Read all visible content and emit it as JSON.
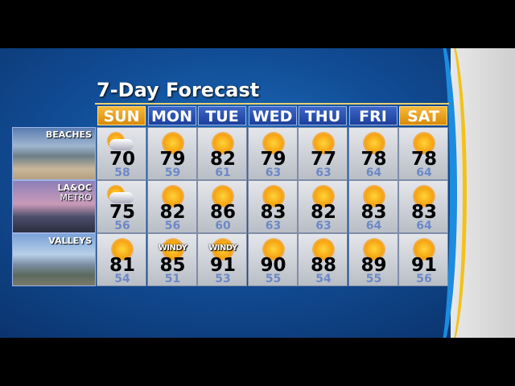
{
  "title": "7-Day Forecast",
  "days": [
    "SUN",
    "MON",
    "TUE",
    "WED",
    "THU",
    "FRI",
    "SAT"
  ],
  "weekend_color": "#f0a21d",
  "weekday_color": "#2b52b4",
  "regions": [
    {
      "name": "BEACHES",
      "sub": "",
      "forecast": [
        {
          "icon": "partly-cloudy",
          "hi": "70",
          "lo": "58"
        },
        {
          "icon": "sunny",
          "hi": "79",
          "lo": "59"
        },
        {
          "icon": "sunny",
          "hi": "82",
          "lo": "61"
        },
        {
          "icon": "sunny",
          "hi": "79",
          "lo": "63"
        },
        {
          "icon": "sunny",
          "hi": "77",
          "lo": "63"
        },
        {
          "icon": "sunny",
          "hi": "78",
          "lo": "64"
        },
        {
          "icon": "sunny",
          "hi": "78",
          "lo": "64"
        }
      ]
    },
    {
      "name": "LA&OC",
      "sub": "METRO",
      "forecast": [
        {
          "icon": "partly-cloudy",
          "hi": "75",
          "lo": "56"
        },
        {
          "icon": "sunny",
          "hi": "82",
          "lo": "56"
        },
        {
          "icon": "sunny",
          "hi": "86",
          "lo": "60"
        },
        {
          "icon": "sunny",
          "hi": "83",
          "lo": "63"
        },
        {
          "icon": "sunny",
          "hi": "82",
          "lo": "63"
        },
        {
          "icon": "sunny",
          "hi": "83",
          "lo": "64"
        },
        {
          "icon": "sunny",
          "hi": "83",
          "lo": "64"
        }
      ]
    },
    {
      "name": "VALLEYS",
      "sub": "",
      "forecast": [
        {
          "icon": "sunny",
          "hi": "81",
          "lo": "54"
        },
        {
          "icon": "windy",
          "label": "WINDY",
          "hi": "85",
          "lo": "51"
        },
        {
          "icon": "windy",
          "label": "WINDY",
          "hi": "91",
          "lo": "53"
        },
        {
          "icon": "sunny",
          "hi": "90",
          "lo": "55"
        },
        {
          "icon": "sunny",
          "hi": "88",
          "lo": "54"
        },
        {
          "icon": "sunny",
          "hi": "89",
          "lo": "55"
        },
        {
          "icon": "sunny",
          "hi": "91",
          "lo": "56"
        }
      ]
    }
  ]
}
